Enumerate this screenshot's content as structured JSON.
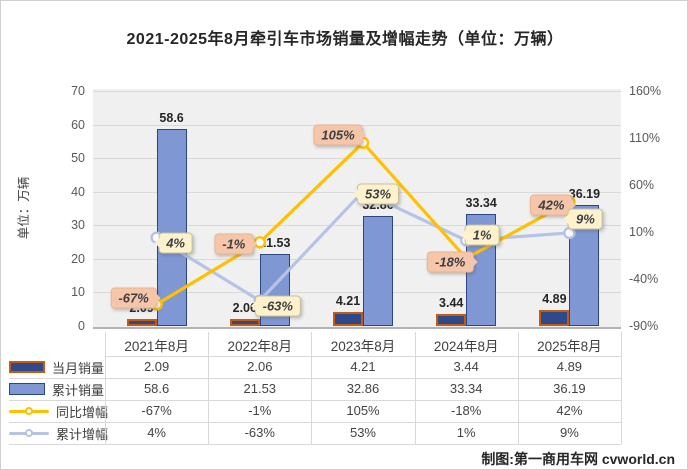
{
  "title": "2021-2025年8月牵引车市场销量及增幅走势（单位：万辆）",
  "credit": "制图:第一商用车网 cvworld.cn",
  "chart_data": {
    "type": "combo-bar-line",
    "categories": [
      "2021年8月",
      "2022年8月",
      "2023年8月",
      "2024年8月",
      "2025年8月"
    ],
    "series": [
      {
        "name": "当月销量",
        "type": "bar",
        "axis": "left",
        "values": [
          2.09,
          2.06,
          4.21,
          3.44,
          4.89
        ],
        "value_labels": [
          "2.09",
          "2.06",
          "4.21",
          "3.44",
          "4.89"
        ]
      },
      {
        "name": "累计销量",
        "type": "bar",
        "axis": "left",
        "values": [
          58.6,
          21.53,
          32.86,
          33.34,
          36.19
        ],
        "value_labels": [
          "58.6",
          "21.53",
          "32.86",
          "33.34",
          "36.19"
        ]
      },
      {
        "name": "同比增幅",
        "type": "line",
        "axis": "right",
        "values": [
          -67,
          -1,
          105,
          -18,
          42
        ],
        "point_labels": [
          "-67%",
          "-1%",
          "105%",
          "-18%",
          "42%"
        ]
      },
      {
        "name": "累计增幅",
        "type": "line",
        "axis": "right",
        "values": [
          4,
          -63,
          53,
          1,
          9
        ],
        "point_labels": [
          "4%",
          "-63%",
          "53%",
          "1%",
          "9%"
        ]
      }
    ],
    "left_axis": {
      "title": "单位：万辆",
      "min": 0,
      "max": 70,
      "tick_values": [
        0,
        10,
        20,
        30,
        40,
        50,
        60,
        70
      ],
      "tick_labels": [
        "0",
        "10",
        "20",
        "30",
        "40",
        "50",
        "60",
        "70"
      ]
    },
    "right_axis": {
      "min": -90,
      "max": 160,
      "tick_values": [
        160,
        110,
        60,
        10,
        -40,
        -90
      ],
      "tick_labels": [
        "160%",
        "110%",
        "60%",
        "10%",
        "-40%",
        "-90%"
      ]
    },
    "gridlines": true,
    "legend_position": "bottom-left-table",
    "colors": {
      "monthly_bar_fill": "#2e4a8c",
      "monthly_bar_border": "#c55a11",
      "cumulative_bar_fill": "#7f97d3",
      "cumulative_bar_border": "#2f4582",
      "yoy_line": "#ffc000",
      "cumulative_line": "#b6c3e5",
      "yoy_callout_bg": "#f5c6a9",
      "cumulative_callout_bg": "#fdf2cc",
      "plot_background": "#f0f0f0",
      "gridline": "#d9d9d9"
    }
  },
  "table": {
    "rows": [
      {
        "label": "当月销量",
        "values": [
          "2.09",
          "2.06",
          "4.21",
          "3.44",
          "4.89"
        ]
      },
      {
        "label": "累计销量",
        "values": [
          "58.6",
          "21.53",
          "32.86",
          "33.34",
          "36.19"
        ]
      },
      {
        "label": "同比增幅",
        "values": [
          "-67%",
          "-1%",
          "105%",
          "-18%",
          "42%"
        ]
      },
      {
        "label": "累计增幅",
        "values": [
          "4%",
          "-63%",
          "53%",
          "1%",
          "9%"
        ]
      }
    ]
  }
}
